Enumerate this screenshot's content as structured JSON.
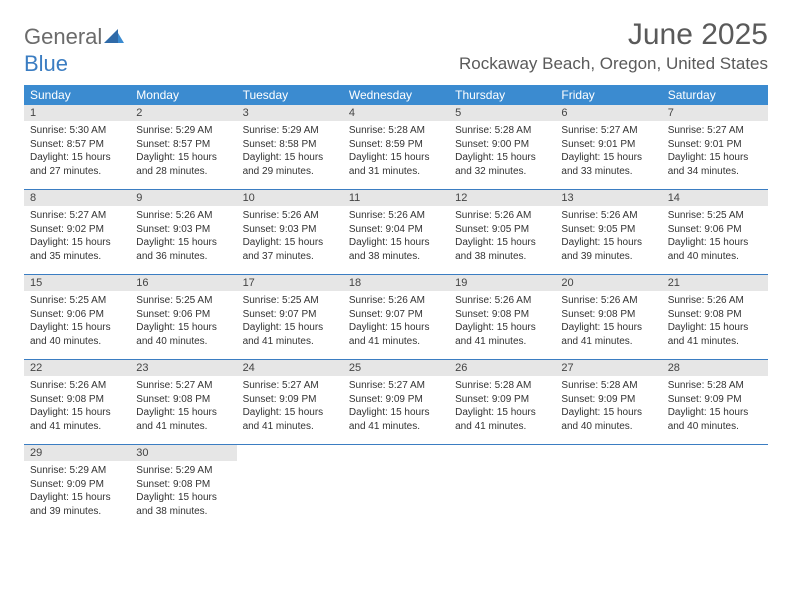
{
  "brand": {
    "word1": "General",
    "word2": "Blue"
  },
  "title": "June 2025",
  "location": "Rockaway Beach, Oregon, United States",
  "colors": {
    "header_bg": "#3b8bd0",
    "header_text": "#ffffff",
    "rule": "#3b7dc2",
    "daynum_bg": "#e6e6e6",
    "text": "#333333",
    "title_color": "#5a5a5a"
  },
  "day_header_fontsize": 12,
  "cell_fontsize": 10,
  "day_names": [
    "Sunday",
    "Monday",
    "Tuesday",
    "Wednesday",
    "Thursday",
    "Friday",
    "Saturday"
  ],
  "weeks": [
    [
      {
        "n": "1",
        "sr": "Sunrise: 5:30 AM",
        "ss": "Sunset: 8:57 PM",
        "d1": "Daylight: 15 hours",
        "d2": "and 27 minutes."
      },
      {
        "n": "2",
        "sr": "Sunrise: 5:29 AM",
        "ss": "Sunset: 8:57 PM",
        "d1": "Daylight: 15 hours",
        "d2": "and 28 minutes."
      },
      {
        "n": "3",
        "sr": "Sunrise: 5:29 AM",
        "ss": "Sunset: 8:58 PM",
        "d1": "Daylight: 15 hours",
        "d2": "and 29 minutes."
      },
      {
        "n": "4",
        "sr": "Sunrise: 5:28 AM",
        "ss": "Sunset: 8:59 PM",
        "d1": "Daylight: 15 hours",
        "d2": "and 31 minutes."
      },
      {
        "n": "5",
        "sr": "Sunrise: 5:28 AM",
        "ss": "Sunset: 9:00 PM",
        "d1": "Daylight: 15 hours",
        "d2": "and 32 minutes."
      },
      {
        "n": "6",
        "sr": "Sunrise: 5:27 AM",
        "ss": "Sunset: 9:01 PM",
        "d1": "Daylight: 15 hours",
        "d2": "and 33 minutes."
      },
      {
        "n": "7",
        "sr": "Sunrise: 5:27 AM",
        "ss": "Sunset: 9:01 PM",
        "d1": "Daylight: 15 hours",
        "d2": "and 34 minutes."
      }
    ],
    [
      {
        "n": "8",
        "sr": "Sunrise: 5:27 AM",
        "ss": "Sunset: 9:02 PM",
        "d1": "Daylight: 15 hours",
        "d2": "and 35 minutes."
      },
      {
        "n": "9",
        "sr": "Sunrise: 5:26 AM",
        "ss": "Sunset: 9:03 PM",
        "d1": "Daylight: 15 hours",
        "d2": "and 36 minutes."
      },
      {
        "n": "10",
        "sr": "Sunrise: 5:26 AM",
        "ss": "Sunset: 9:03 PM",
        "d1": "Daylight: 15 hours",
        "d2": "and 37 minutes."
      },
      {
        "n": "11",
        "sr": "Sunrise: 5:26 AM",
        "ss": "Sunset: 9:04 PM",
        "d1": "Daylight: 15 hours",
        "d2": "and 38 minutes."
      },
      {
        "n": "12",
        "sr": "Sunrise: 5:26 AM",
        "ss": "Sunset: 9:05 PM",
        "d1": "Daylight: 15 hours",
        "d2": "and 38 minutes."
      },
      {
        "n": "13",
        "sr": "Sunrise: 5:26 AM",
        "ss": "Sunset: 9:05 PM",
        "d1": "Daylight: 15 hours",
        "d2": "and 39 minutes."
      },
      {
        "n": "14",
        "sr": "Sunrise: 5:25 AM",
        "ss": "Sunset: 9:06 PM",
        "d1": "Daylight: 15 hours",
        "d2": "and 40 minutes."
      }
    ],
    [
      {
        "n": "15",
        "sr": "Sunrise: 5:25 AM",
        "ss": "Sunset: 9:06 PM",
        "d1": "Daylight: 15 hours",
        "d2": "and 40 minutes."
      },
      {
        "n": "16",
        "sr": "Sunrise: 5:25 AM",
        "ss": "Sunset: 9:06 PM",
        "d1": "Daylight: 15 hours",
        "d2": "and 40 minutes."
      },
      {
        "n": "17",
        "sr": "Sunrise: 5:25 AM",
        "ss": "Sunset: 9:07 PM",
        "d1": "Daylight: 15 hours",
        "d2": "and 41 minutes."
      },
      {
        "n": "18",
        "sr": "Sunrise: 5:26 AM",
        "ss": "Sunset: 9:07 PM",
        "d1": "Daylight: 15 hours",
        "d2": "and 41 minutes."
      },
      {
        "n": "19",
        "sr": "Sunrise: 5:26 AM",
        "ss": "Sunset: 9:08 PM",
        "d1": "Daylight: 15 hours",
        "d2": "and 41 minutes."
      },
      {
        "n": "20",
        "sr": "Sunrise: 5:26 AM",
        "ss": "Sunset: 9:08 PM",
        "d1": "Daylight: 15 hours",
        "d2": "and 41 minutes."
      },
      {
        "n": "21",
        "sr": "Sunrise: 5:26 AM",
        "ss": "Sunset: 9:08 PM",
        "d1": "Daylight: 15 hours",
        "d2": "and 41 minutes."
      }
    ],
    [
      {
        "n": "22",
        "sr": "Sunrise: 5:26 AM",
        "ss": "Sunset: 9:08 PM",
        "d1": "Daylight: 15 hours",
        "d2": "and 41 minutes."
      },
      {
        "n": "23",
        "sr": "Sunrise: 5:27 AM",
        "ss": "Sunset: 9:08 PM",
        "d1": "Daylight: 15 hours",
        "d2": "and 41 minutes."
      },
      {
        "n": "24",
        "sr": "Sunrise: 5:27 AM",
        "ss": "Sunset: 9:09 PM",
        "d1": "Daylight: 15 hours",
        "d2": "and 41 minutes."
      },
      {
        "n": "25",
        "sr": "Sunrise: 5:27 AM",
        "ss": "Sunset: 9:09 PM",
        "d1": "Daylight: 15 hours",
        "d2": "and 41 minutes."
      },
      {
        "n": "26",
        "sr": "Sunrise: 5:28 AM",
        "ss": "Sunset: 9:09 PM",
        "d1": "Daylight: 15 hours",
        "d2": "and 41 minutes."
      },
      {
        "n": "27",
        "sr": "Sunrise: 5:28 AM",
        "ss": "Sunset: 9:09 PM",
        "d1": "Daylight: 15 hours",
        "d2": "and 40 minutes."
      },
      {
        "n": "28",
        "sr": "Sunrise: 5:28 AM",
        "ss": "Sunset: 9:09 PM",
        "d1": "Daylight: 15 hours",
        "d2": "and 40 minutes."
      }
    ],
    [
      {
        "n": "29",
        "sr": "Sunrise: 5:29 AM",
        "ss": "Sunset: 9:09 PM",
        "d1": "Daylight: 15 hours",
        "d2": "and 39 minutes."
      },
      {
        "n": "30",
        "sr": "Sunrise: 5:29 AM",
        "ss": "Sunset: 9:08 PM",
        "d1": "Daylight: 15 hours",
        "d2": "and 38 minutes."
      },
      {
        "empty": true
      },
      {
        "empty": true
      },
      {
        "empty": true
      },
      {
        "empty": true
      },
      {
        "empty": true
      }
    ]
  ]
}
